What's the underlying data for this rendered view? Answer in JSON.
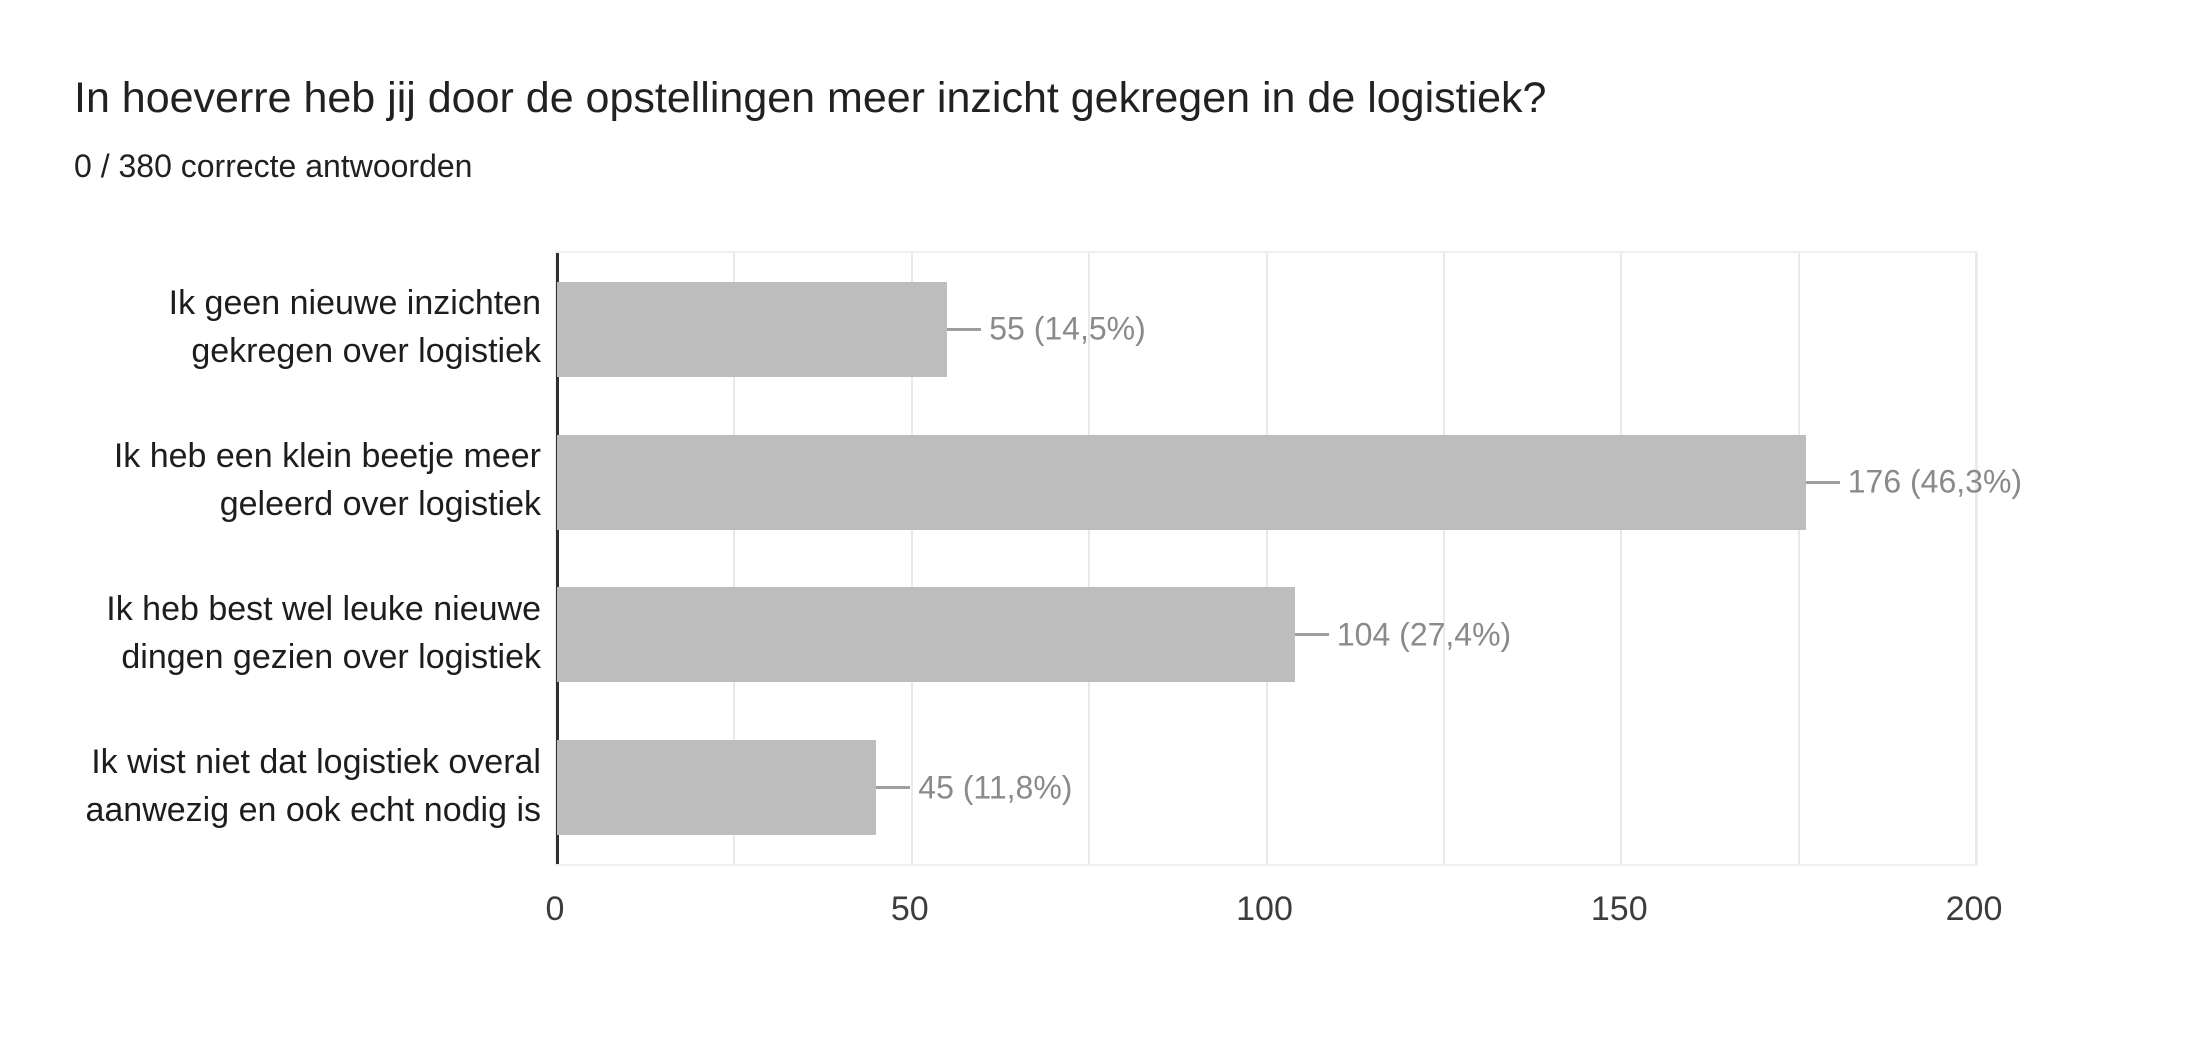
{
  "header": {
    "title": "In hoeverre heb jij door de opstellingen meer inzicht gekregen in de logistiek?",
    "subtitle": "0 / 380 correcte antwoorden"
  },
  "chart_data": {
    "type": "bar",
    "orientation": "horizontal",
    "title": "In hoeverre heb jij door de opstellingen meer inzicht gekregen in de logistiek?",
    "subtitle": "0 / 380 correcte antwoorden",
    "total_answers": 380,
    "correct_answers": 0,
    "categories": [
      "Ik geen nieuwe inzichten\ngekregen over logistiek",
      "Ik heb een klein beetje meer\ngeleerd over logistiek",
      "Ik heb best wel leuke nieuwe\ndingen gezien over logistiek",
      "Ik wist niet dat logistiek overal\naanwezig en ook echt nodig is"
    ],
    "values": [
      55,
      176,
      104,
      45
    ],
    "value_labels": [
      "55 (14,5%)",
      "176 (46,3%)",
      "104 (27,4%)",
      "45 (11,8%)"
    ],
    "percentages": [
      14.5,
      46.3,
      27.4,
      11.8
    ],
    "xlim": [
      0,
      200
    ],
    "x_ticks": [
      0,
      50,
      100,
      150,
      200
    ],
    "gridline_step": 25,
    "grid_on": true,
    "legend": "none",
    "colors": {
      "bar": "#bdbdbd",
      "value_label": "#8a8a8a",
      "callout_line": "#9e9e9e",
      "gridline": "#e9e9e9",
      "axis_line": "#2f2f2f",
      "title_text": "#212121",
      "category_text": "#1d1d1d",
      "tick_text": "#3d3d3d",
      "plot_border": "#efefef"
    }
  }
}
